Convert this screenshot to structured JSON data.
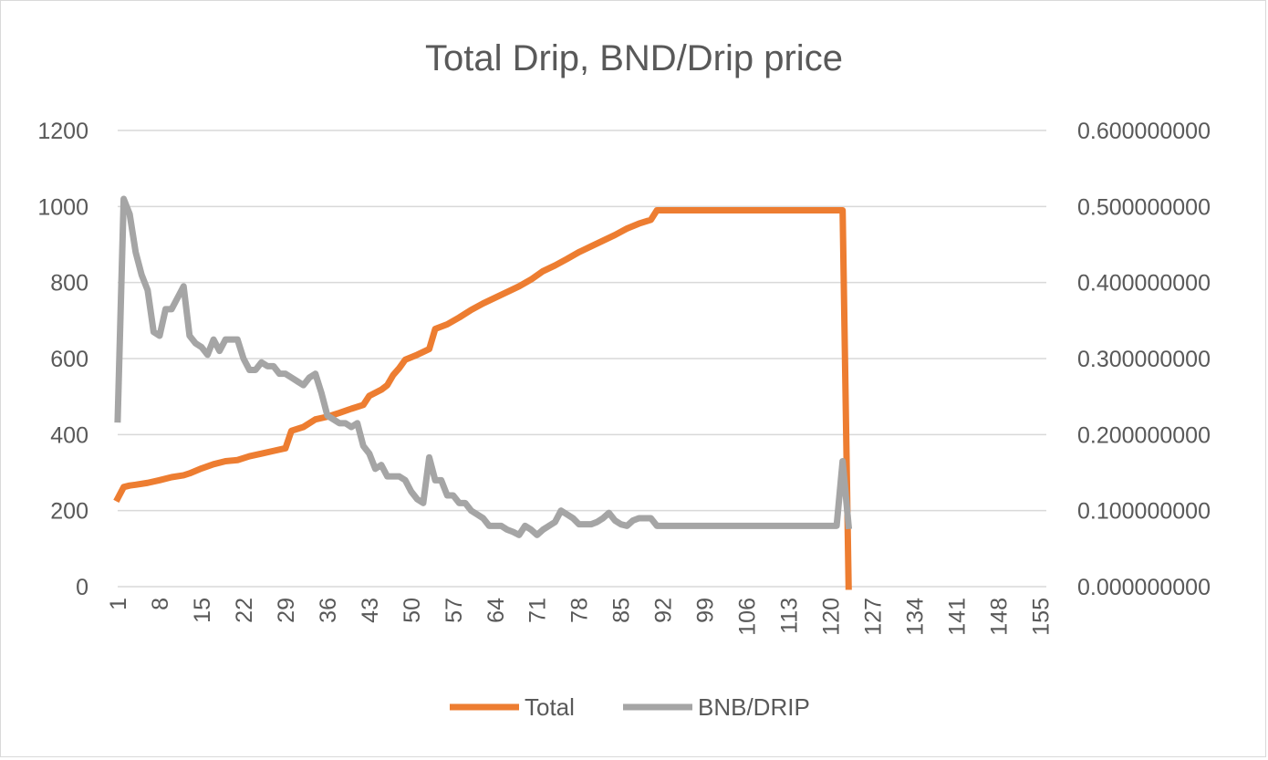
{
  "chart_data": {
    "type": "line",
    "title": "Total Drip, BND/Drip price",
    "xlabel": "",
    "ylabel": "",
    "x_range": [
      1,
      156
    ],
    "x_ticks": [
      "1",
      "8",
      "15",
      "22",
      "29",
      "36",
      "43",
      "50",
      "57",
      "64",
      "71",
      "78",
      "85",
      "92",
      "99",
      "106",
      "113",
      "120",
      "127",
      "134",
      "141",
      "148",
      "155"
    ],
    "y_left": {
      "range": [
        0,
        1200
      ],
      "ticks": [
        "0",
        "200",
        "400",
        "600",
        "800",
        "1000",
        "1200"
      ]
    },
    "y_right": {
      "range": [
        0,
        0.6
      ],
      "ticks": [
        "0.000000000",
        "0.100000000",
        "0.200000000",
        "0.300000000",
        "0.400000000",
        "0.500000000",
        "0.600000000"
      ]
    },
    "grid": true,
    "legend_position": "bottom",
    "series": [
      {
        "name": "Total",
        "axis": "left",
        "color": "#ED7D31",
        "points": [
          [
            0,
            232
          ],
          [
            1,
            262
          ],
          [
            2,
            266
          ],
          [
            3,
            268
          ],
          [
            5,
            273
          ],
          [
            7,
            280
          ],
          [
            9,
            288
          ],
          [
            11,
            293
          ],
          [
            12,
            298
          ],
          [
            14,
            311
          ],
          [
            16,
            322
          ],
          [
            18,
            330
          ],
          [
            20,
            333
          ],
          [
            22,
            343
          ],
          [
            24,
            350
          ],
          [
            26,
            357
          ],
          [
            28,
            364
          ],
          [
            29,
            410
          ],
          [
            31,
            420
          ],
          [
            33,
            440
          ],
          [
            35,
            447
          ],
          [
            37,
            457
          ],
          [
            39,
            468
          ],
          [
            41,
            478
          ],
          [
            42,
            502
          ],
          [
            44,
            518
          ],
          [
            45,
            530
          ],
          [
            46,
            557
          ],
          [
            47,
            575
          ],
          [
            48,
            597
          ],
          [
            50,
            610
          ],
          [
            52,
            625
          ],
          [
            53,
            678
          ],
          [
            55,
            690
          ],
          [
            57,
            708
          ],
          [
            59,
            728
          ],
          [
            61,
            745
          ],
          [
            63,
            760
          ],
          [
            65,
            775
          ],
          [
            67,
            790
          ],
          [
            69,
            808
          ],
          [
            71,
            830
          ],
          [
            73,
            845
          ],
          [
            75,
            862
          ],
          [
            77,
            880
          ],
          [
            79,
            895
          ],
          [
            81,
            910
          ],
          [
            83,
            925
          ],
          [
            85,
            942
          ],
          [
            87,
            955
          ],
          [
            89,
            965
          ],
          [
            90,
            990
          ],
          [
            121,
            990
          ],
          [
            122,
            0
          ]
        ]
      },
      {
        "name": "BNB/DRIP",
        "axis": "right",
        "color": "#A5A5A5",
        "points": [
          [
            0,
            0.22
          ],
          [
            1,
            0.51
          ],
          [
            2,
            0.49
          ],
          [
            3,
            0.44
          ],
          [
            4,
            0.41
          ],
          [
            5,
            0.39
          ],
          [
            6,
            0.335
          ],
          [
            7,
            0.33
          ],
          [
            8,
            0.365
          ],
          [
            9,
            0.365
          ],
          [
            10,
            0.38
          ],
          [
            11,
            0.395
          ],
          [
            12,
            0.33
          ],
          [
            13,
            0.32
          ],
          [
            14,
            0.315
          ],
          [
            15,
            0.305
          ],
          [
            16,
            0.325
          ],
          [
            17,
            0.31
          ],
          [
            18,
            0.325
          ],
          [
            19,
            0.325
          ],
          [
            20,
            0.325
          ],
          [
            21,
            0.3
          ],
          [
            22,
            0.285
          ],
          [
            23,
            0.285
          ],
          [
            24,
            0.295
          ],
          [
            25,
            0.29
          ],
          [
            26,
            0.29
          ],
          [
            27,
            0.28
          ],
          [
            28,
            0.28
          ],
          [
            29,
            0.275
          ],
          [
            30,
            0.27
          ],
          [
            31,
            0.265
          ],
          [
            32,
            0.275
          ],
          [
            33,
            0.28
          ],
          [
            34,
            0.255
          ],
          [
            35,
            0.225
          ],
          [
            36,
            0.22
          ],
          [
            37,
            0.215
          ],
          [
            38,
            0.215
          ],
          [
            39,
            0.21
          ],
          [
            40,
            0.215
          ],
          [
            41,
            0.185
          ],
          [
            42,
            0.175
          ],
          [
            43,
            0.155
          ],
          [
            44,
            0.16
          ],
          [
            45,
            0.145
          ],
          [
            46,
            0.145
          ],
          [
            47,
            0.145
          ],
          [
            48,
            0.14
          ],
          [
            49,
            0.125
          ],
          [
            50,
            0.115
          ],
          [
            51,
            0.11
          ],
          [
            52,
            0.17
          ],
          [
            53,
            0.14
          ],
          [
            54,
            0.14
          ],
          [
            55,
            0.12
          ],
          [
            56,
            0.12
          ],
          [
            57,
            0.11
          ],
          [
            58,
            0.11
          ],
          [
            59,
            0.1
          ],
          [
            60,
            0.095
          ],
          [
            61,
            0.09
          ],
          [
            62,
            0.08
          ],
          [
            63,
            0.08
          ],
          [
            64,
            0.08
          ],
          [
            65,
            0.075
          ],
          [
            66,
            0.072
          ],
          [
            67,
            0.068
          ],
          [
            68,
            0.08
          ],
          [
            69,
            0.075
          ],
          [
            70,
            0.068
          ],
          [
            71,
            0.075
          ],
          [
            72,
            0.08
          ],
          [
            73,
            0.085
          ],
          [
            74,
            0.1
          ],
          [
            75,
            0.095
          ],
          [
            76,
            0.09
          ],
          [
            77,
            0.082
          ],
          [
            78,
            0.082
          ],
          [
            79,
            0.082
          ],
          [
            80,
            0.085
          ],
          [
            81,
            0.09
          ],
          [
            82,
            0.097
          ],
          [
            83,
            0.087
          ],
          [
            84,
            0.082
          ],
          [
            85,
            0.08
          ],
          [
            86,
            0.087
          ],
          [
            87,
            0.09
          ],
          [
            88,
            0.09
          ],
          [
            89,
            0.09
          ],
          [
            90,
            0.08
          ],
          [
            120,
            0.08
          ],
          [
            121,
            0.165
          ],
          [
            122,
            0.08
          ]
        ]
      }
    ]
  }
}
